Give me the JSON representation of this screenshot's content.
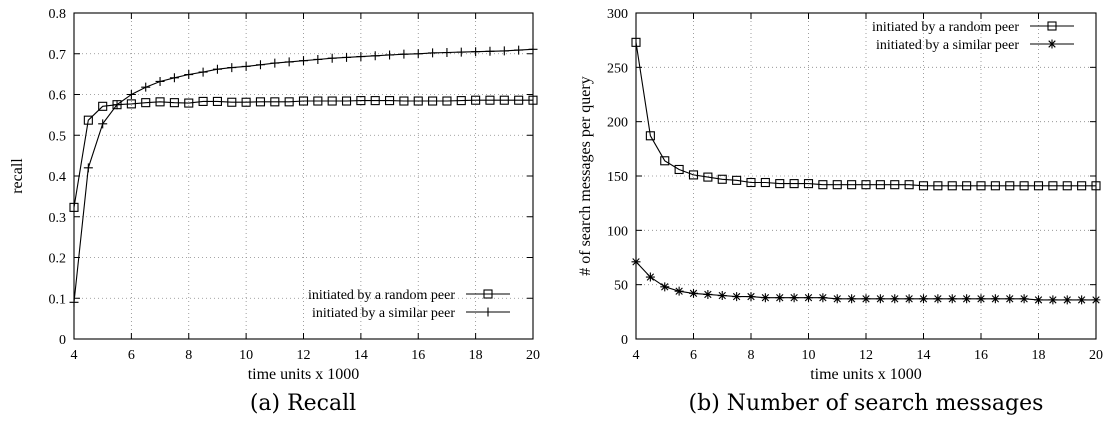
{
  "chart_data": [
    {
      "type": "line",
      "caption": "(a) Recall",
      "xlabel": "time units x 1000",
      "ylabel": "recall",
      "xlim": [
        4,
        20
      ],
      "ylim": [
        0,
        0.8
      ],
      "xticks": [
        "4",
        "6",
        "8",
        "10",
        "12",
        "14",
        "16",
        "18",
        "20"
      ],
      "yticks": [
        "0",
        "0.1",
        "0.2",
        "0.3",
        "0.4",
        "0.5",
        "0.6",
        "0.7",
        "0.8"
      ],
      "grid": true,
      "legend_position": "bottom-right",
      "x": [
        4,
        4.5,
        5,
        5.5,
        6,
        6.5,
        7,
        7.5,
        8,
        8.5,
        9,
        9.5,
        10,
        10.5,
        11,
        11.5,
        12,
        12.5,
        13,
        13.5,
        14,
        14.5,
        15,
        15.5,
        16,
        16.5,
        17,
        17.5,
        18,
        18.5,
        19,
        19.5,
        20
      ],
      "series": [
        {
          "name": "initiated by a random peer",
          "marker": "square",
          "values": [
            0.323,
            0.537,
            0.571,
            0.575,
            0.577,
            0.58,
            0.582,
            0.58,
            0.579,
            0.583,
            0.583,
            0.581,
            0.581,
            0.582,
            0.582,
            0.582,
            0.584,
            0.584,
            0.584,
            0.584,
            0.585,
            0.585,
            0.585,
            0.584,
            0.584,
            0.584,
            0.584,
            0.585,
            0.586,
            0.586,
            0.586,
            0.586,
            0.586
          ]
        },
        {
          "name": "initiated by a similar peer",
          "marker": "plus",
          "values": [
            0.09,
            0.42,
            0.528,
            0.575,
            0.6,
            0.618,
            0.632,
            0.641,
            0.649,
            0.655,
            0.662,
            0.666,
            0.669,
            0.673,
            0.677,
            0.68,
            0.683,
            0.686,
            0.689,
            0.691,
            0.693,
            0.695,
            0.697,
            0.699,
            0.7,
            0.702,
            0.703,
            0.704,
            0.705,
            0.706,
            0.707,
            0.709,
            0.711
          ]
        }
      ]
    },
    {
      "type": "line",
      "caption": "(b) Number of search messages",
      "xlabel": "time units x 1000",
      "ylabel": "# of search messages per query",
      "xlim": [
        4,
        20
      ],
      "ylim": [
        0,
        300
      ],
      "xticks": [
        "4",
        "6",
        "8",
        "10",
        "12",
        "14",
        "16",
        "18",
        "20"
      ],
      "yticks": [
        "0",
        "50",
        "100",
        "150",
        "200",
        "250",
        "300"
      ],
      "grid": true,
      "legend_position": "top-right",
      "x": [
        4,
        4.5,
        5,
        5.5,
        6,
        6.5,
        7,
        7.5,
        8,
        8.5,
        9,
        9.5,
        10,
        10.5,
        11,
        11.5,
        12,
        12.5,
        13,
        13.5,
        14,
        14.5,
        15,
        15.5,
        16,
        16.5,
        17,
        17.5,
        18,
        18.5,
        19,
        19.5,
        20
      ],
      "series": [
        {
          "name": "initiated by a random peer",
          "marker": "square",
          "values": [
            273,
            187,
            164,
            156,
            151,
            149,
            147,
            146,
            144,
            144,
            143,
            143,
            143,
            142,
            142,
            142,
            142,
            142,
            142,
            142,
            141,
            141,
            141,
            141,
            141,
            141,
            141,
            141,
            141,
            141,
            141,
            141,
            141
          ]
        },
        {
          "name": "initiated by a similar peer",
          "marker": "star",
          "values": [
            71,
            57,
            48,
            44,
            42,
            41,
            40,
            39,
            39,
            38,
            38,
            38,
            38,
            38,
            37,
            37,
            37,
            37,
            37,
            37,
            37,
            37,
            37,
            37,
            37,
            37,
            37,
            37,
            36,
            36,
            36,
            36,
            36
          ]
        }
      ]
    }
  ]
}
